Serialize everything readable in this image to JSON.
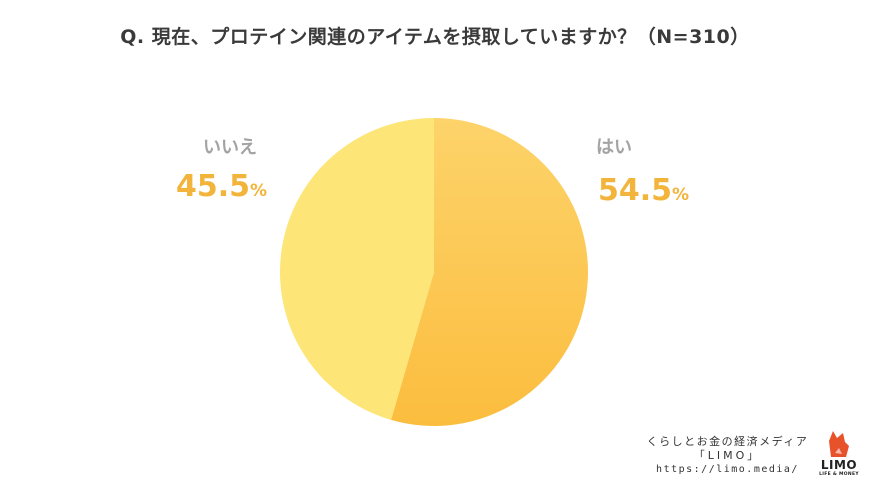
{
  "chart_data": {
    "type": "pie",
    "title": "Q. 現在、プロテイン関連のアイテムを摂取していますか？（N=310）",
    "slices": [
      {
        "label": "はい",
        "value": 54.5,
        "value_text": "54.5",
        "unit": "%",
        "color": "#fcc24a"
      },
      {
        "label": "いいえ",
        "value": 45.5,
        "value_text": "45.5",
        "unit": "%",
        "color": "#fde577"
      }
    ]
  },
  "branding": {
    "tagline": "くらしとお金の経済メディア",
    "name": "「LIMO」",
    "url": "https://limo.media/",
    "logo_text": "LIMO",
    "logo_subtext": "LIFE & MONEY",
    "logo_color": "#e8522a"
  }
}
